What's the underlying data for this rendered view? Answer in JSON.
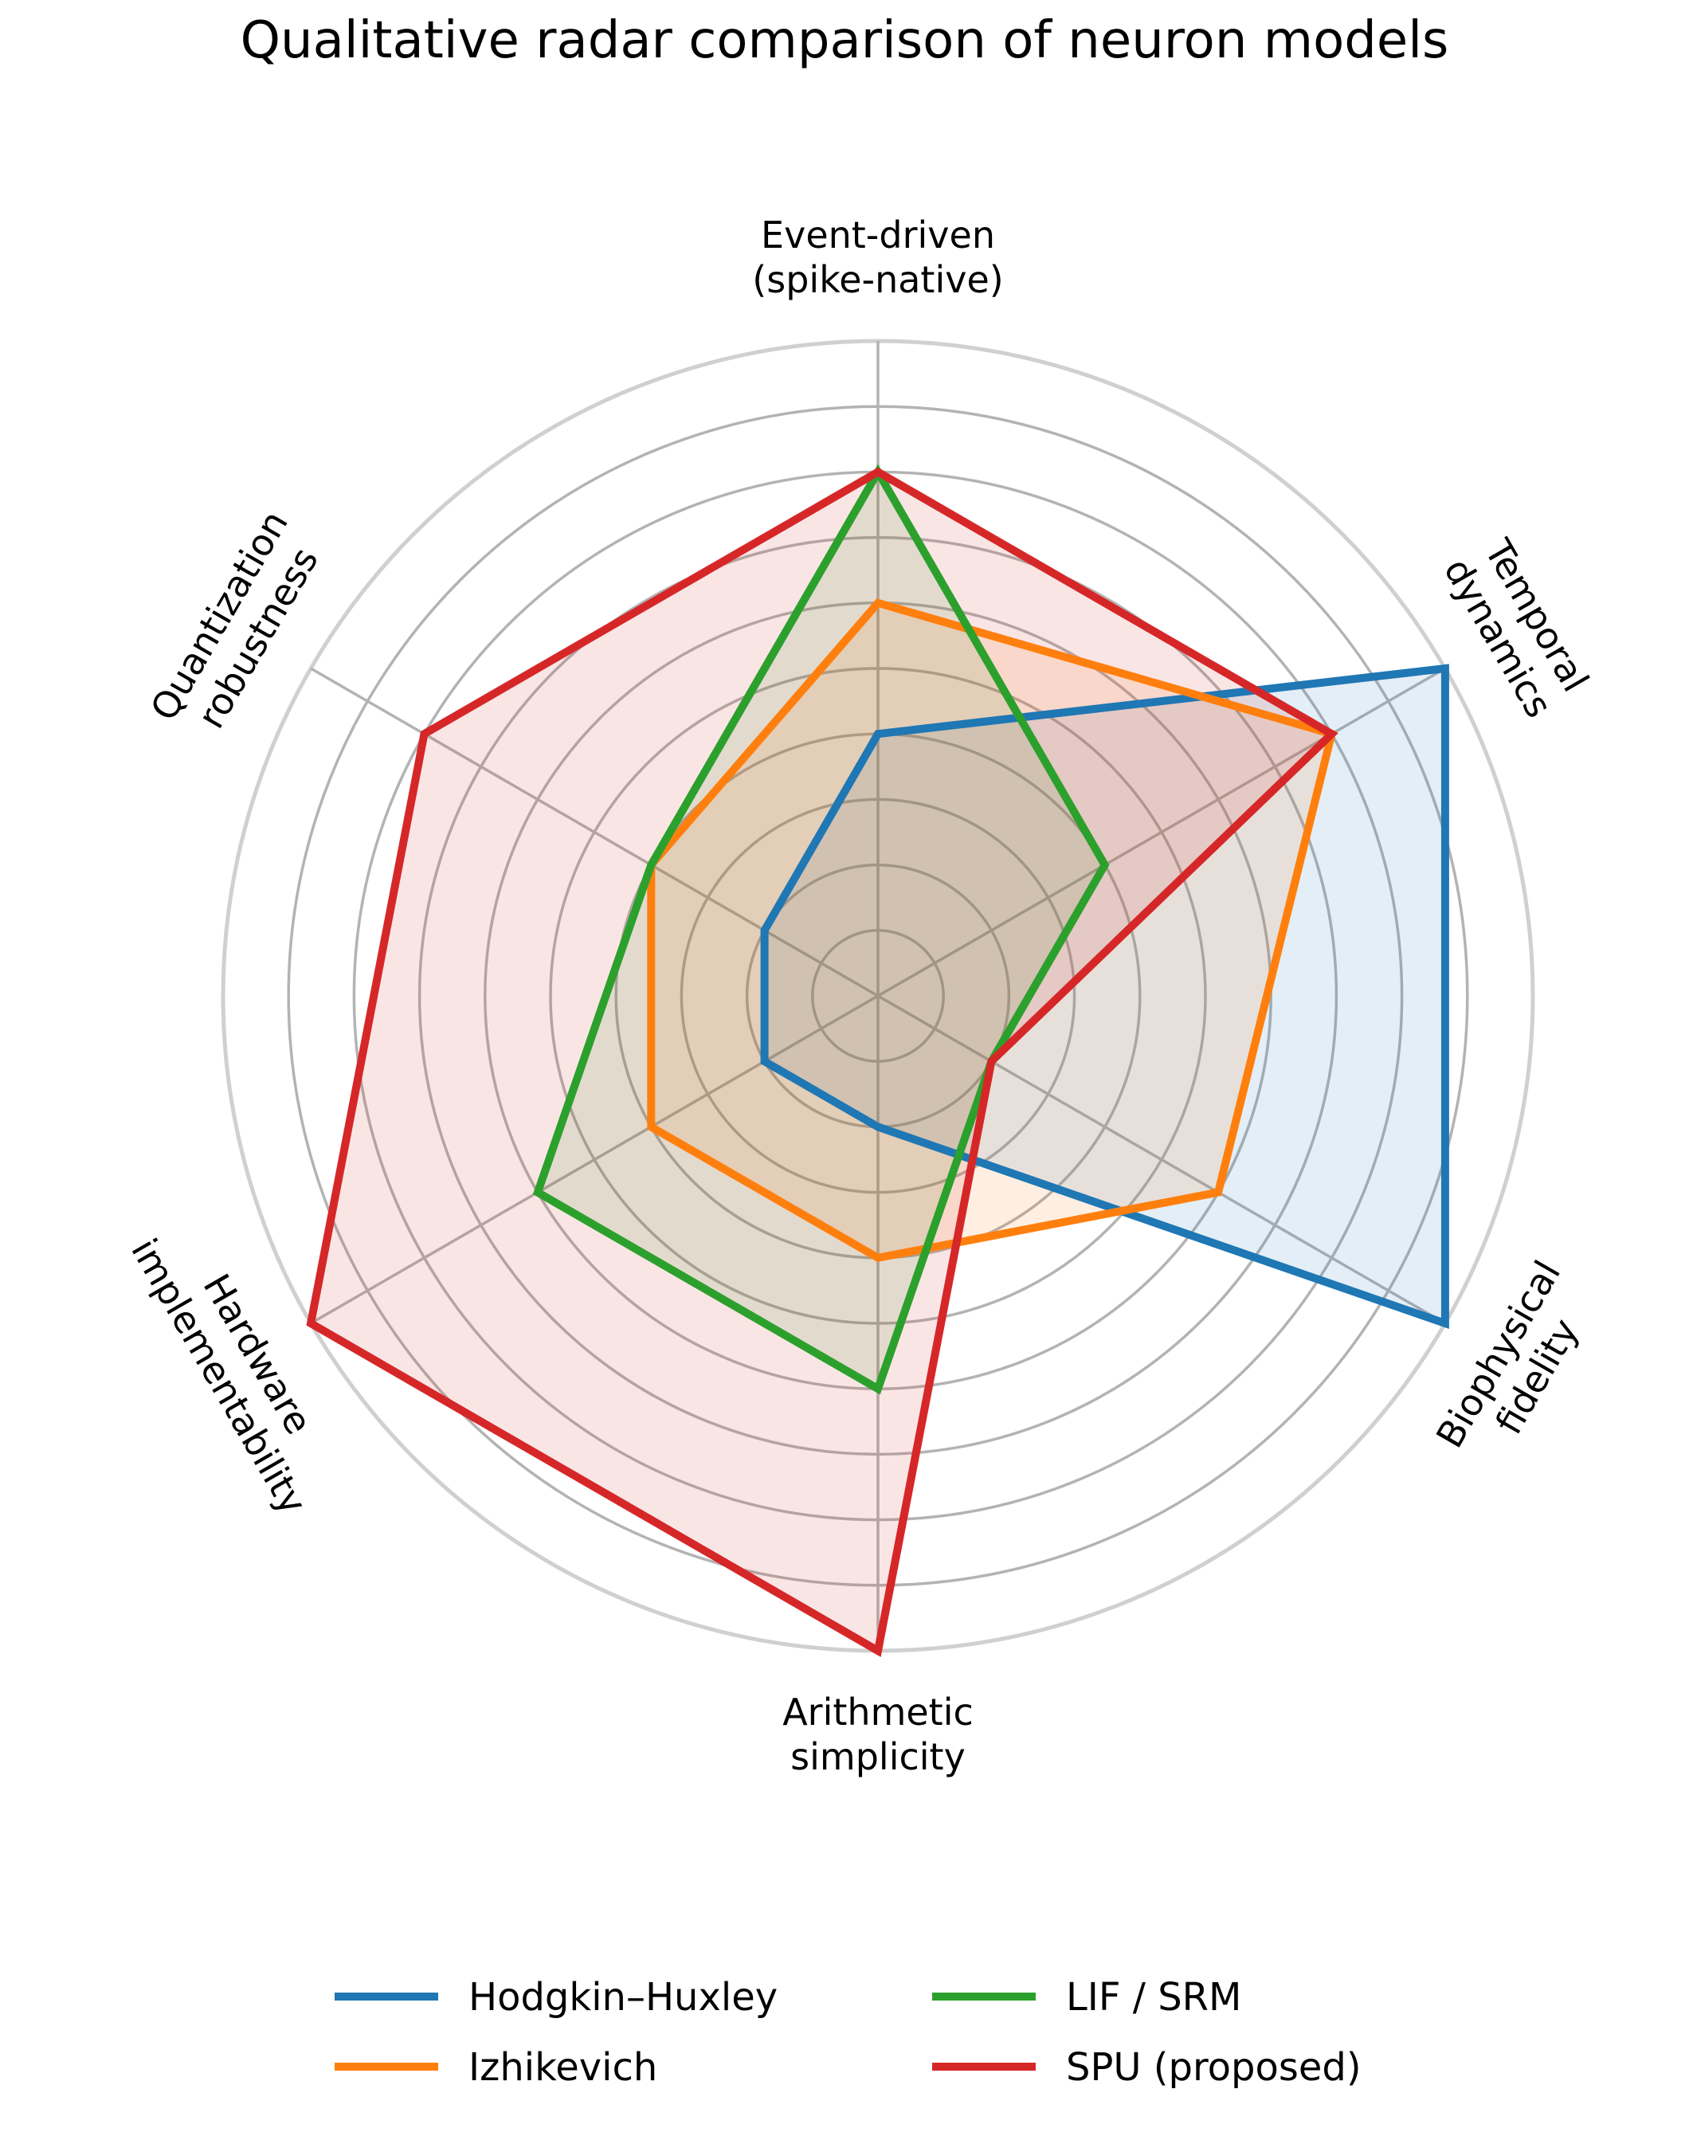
{
  "chart_data": {
    "type": "radar",
    "title": "Qualitative radar comparison of neuron models",
    "axes": [
      "Event-driven\n(spike-native)",
      "Temporal\ndynamics",
      "Biophysical\nfidelity",
      "Arithmetic\nsimplicity",
      "Hardware\nimplementability",
      "Quantization\nrobustness"
    ],
    "rmax": 5,
    "rticks": [
      1,
      2,
      3,
      4,
      5
    ],
    "grid": true,
    "legend_location": "bottom",
    "series": [
      {
        "name": "Hodgkin–Huxley",
        "color": "#1f77b4",
        "values": [
          2.0,
          5.0,
          5.0,
          1.0,
          1.0,
          1.0
        ]
      },
      {
        "name": "Izhikevich",
        "color": "#ff7f0e",
        "values": [
          3.0,
          4.0,
          3.0,
          2.0,
          2.0,
          2.0
        ]
      },
      {
        "name": "LIF / SRM",
        "color": "#2ca02c",
        "values": [
          4.0,
          2.0,
          1.0,
          3.0,
          3.0,
          2.0
        ]
      },
      {
        "name": "SPU (proposed)",
        "color": "#d62728",
        "values": [
          4.0,
          4.0,
          1.0,
          5.0,
          5.0,
          4.0
        ]
      }
    ]
  }
}
